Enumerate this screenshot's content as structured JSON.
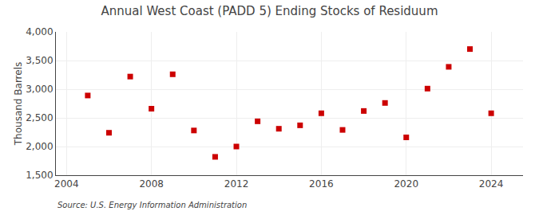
{
  "chart_data": {
    "type": "scatter",
    "title": "Annual West Coast (PADD 5) Ending Stocks of Residuum",
    "y_label": "Thousand Barrels",
    "annotations": [
      "Source: U.S. Energy Information Administration"
    ],
    "x": [
      2005,
      2006,
      2007,
      2008,
      2009,
      2010,
      2011,
      2012,
      2013,
      2014,
      2015,
      2016,
      2017,
      2018,
      2019,
      2020,
      2021,
      2022,
      2023,
      2024
    ],
    "values": [
      2890,
      2240,
      3220,
      2660,
      3260,
      2280,
      1820,
      2000,
      2440,
      2310,
      2370,
      2580,
      2290,
      2620,
      2760,
      2160,
      3010,
      3390,
      3700,
      2580
    ],
    "color": "#cc0000",
    "marker": "square",
    "xlim": [
      2003.5,
      2025.5
    ],
    "xticks": [
      2004,
      2008,
      2012,
      2016,
      2020,
      2024
    ],
    "ylim": [
      1500,
      4000
    ],
    "yticks": [
      {
        "value": 1500,
        "label": "1,500"
      },
      {
        "value": 2000,
        "label": "2,000"
      },
      {
        "value": 2500,
        "label": "2,500"
      },
      {
        "value": 3000,
        "label": "3,000"
      },
      {
        "value": 3500,
        "label": "3,500"
      },
      {
        "value": 4000,
        "label": "4,000"
      }
    ],
    "grid": true
  }
}
